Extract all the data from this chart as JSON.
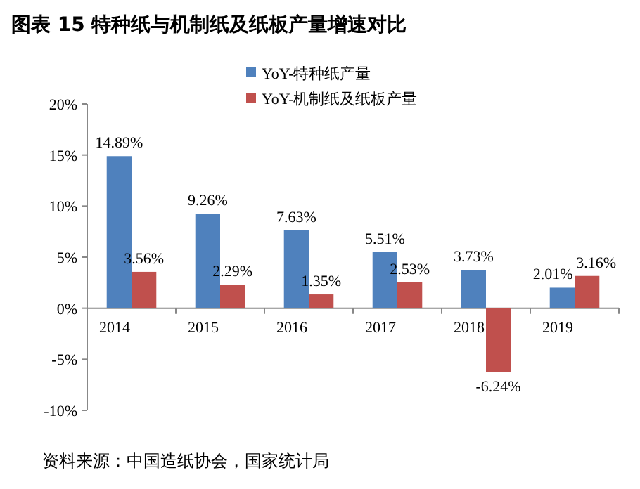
{
  "chart_data": {
    "type": "bar",
    "title": "图表 15  特种纸与机制纸及纸板产量增速对比",
    "categories": [
      "2014",
      "2015",
      "2016",
      "2017",
      "2018",
      "2019"
    ],
    "series": [
      {
        "name": "YoY-特种纸产量",
        "color": "#4f81bd",
        "values": [
          14.89,
          9.26,
          7.63,
          5.51,
          3.73,
          2.01
        ],
        "value_labels": [
          "14.89%",
          "9.26%",
          "7.63%",
          "5.51%",
          "3.73%",
          "2.01%"
        ]
      },
      {
        "name": "YoY-机制纸及纸板产量",
        "color": "#c0504d",
        "values": [
          3.56,
          2.29,
          1.35,
          2.53,
          -6.24,
          3.16
        ],
        "value_labels": [
          "3.56%",
          "2.29%",
          "1.35%",
          "2.53%",
          "-6.24%",
          "3.16%"
        ]
      }
    ],
    "ylim": [
      -10,
      20
    ],
    "yticks": [
      {
        "value": -10,
        "label": "-10%"
      },
      {
        "value": -5,
        "label": "-5%"
      },
      {
        "value": 0,
        "label": "0%"
      },
      {
        "value": 5,
        "label": "5%"
      },
      {
        "value": 10,
        "label": "10%"
      },
      {
        "value": 15,
        "label": "15%"
      },
      {
        "value": 20,
        "label": "20%"
      }
    ],
    "legend": "top",
    "annotations": [
      "资料来源：中国造纸协会，国家统计局"
    ]
  }
}
